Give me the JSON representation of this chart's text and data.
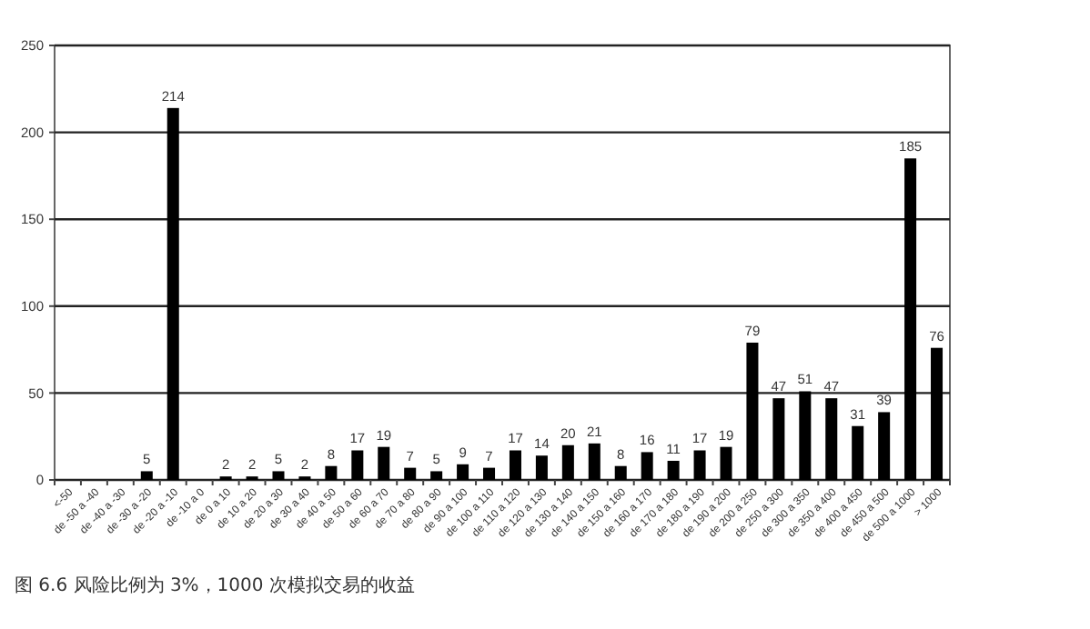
{
  "chart_data": {
    "type": "bar",
    "categories": [
      "<-50",
      "de -50 a -40",
      "de -40 a -30",
      "de -30 a -20",
      "de -20 a -10",
      "de -10 a 0",
      "de 0 a 10",
      "de 10 a 20",
      "de 20 a 30",
      "de 30 a 40",
      "de 40 a 50",
      "de 50 a 60",
      "de 60 a 70",
      "de 70 a 80",
      "de 80 a 90",
      "de 90 a 100",
      "de 100 a 110",
      "de 110 a 120",
      "de 120 a 130",
      "de 130 a 140",
      "de 140 a 150",
      "de 150 a 160",
      "de 160 a 170",
      "de 170 a 180",
      "de 180 a 190",
      "de 190 a 200",
      "de 200 a 250",
      "de 250 a 300",
      "de 300 a 350",
      "de 350 a 400",
      "de 400 a 450",
      "de 450 a 500",
      "de 500 a 1000",
      "> 1000"
    ],
    "values": [
      null,
      null,
      null,
      5,
      214,
      null,
      2,
      2,
      5,
      2,
      8,
      17,
      19,
      7,
      5,
      9,
      7,
      17,
      14,
      20,
      21,
      8,
      16,
      11,
      17,
      19,
      79,
      47,
      51,
      47,
      31,
      39,
      185,
      76
    ],
    "color": "#000000",
    "ylim": [
      0,
      250
    ],
    "yticks": [
      0,
      50,
      100,
      150,
      200,
      250
    ],
    "grid": "y",
    "data_labels": true,
    "annotations": [
      "图 6.6   风险比例为 3%，1000 次模拟交易的收益"
    ]
  }
}
